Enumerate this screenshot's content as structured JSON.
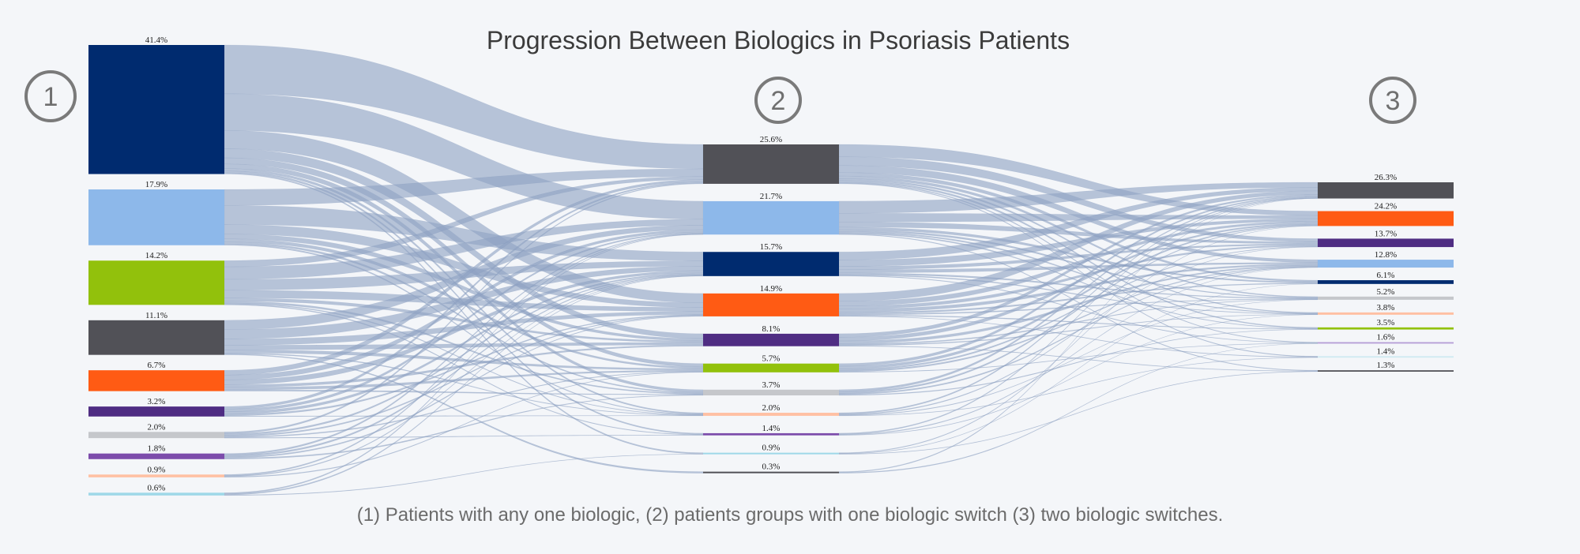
{
  "chart_data": {
    "type": "sankey",
    "title": "Progression Between Biologics in Psoriasis Patients",
    "caption": "(1) Patients with any one biologic, (2) patients groups with one biologic switch (3) two biologic switches.",
    "stage_labels": [
      "1",
      "2",
      "3"
    ],
    "link_color": "#8fa3c4",
    "stages": [
      {
        "nodes": [
          {
            "label": "41.4%",
            "value": 41.4,
            "color": "#002b6f"
          },
          {
            "label": "17.9%",
            "value": 17.9,
            "color": "#8db8ea"
          },
          {
            "label": "14.2%",
            "value": 14.2,
            "color": "#92c10c"
          },
          {
            "label": "11.1%",
            "value": 11.1,
            "color": "#515157"
          },
          {
            "label": "6.7%",
            "value": 6.7,
            "color": "#ff5b14"
          },
          {
            "label": "3.2%",
            "value": 3.2,
            "color": "#4f2d83"
          },
          {
            "label": "2.0%",
            "value": 2.0,
            "color": "#c5c7cb"
          },
          {
            "label": "1.8%",
            "value": 1.8,
            "color": "#7c4cab"
          },
          {
            "label": "0.9%",
            "value": 0.9,
            "color": "#ffc0a3"
          },
          {
            "label": "0.6%",
            "value": 0.6,
            "color": "#9ed8e8"
          }
        ]
      },
      {
        "nodes": [
          {
            "label": "25.6%",
            "value": 25.6,
            "color": "#515157"
          },
          {
            "label": "21.7%",
            "value": 21.7,
            "color": "#8db8ea"
          },
          {
            "label": "15.7%",
            "value": 15.7,
            "color": "#002b6f"
          },
          {
            "label": "14.9%",
            "value": 14.9,
            "color": "#ff5b14"
          },
          {
            "label": "8.1%",
            "value": 8.1,
            "color": "#4f2d83"
          },
          {
            "label": "5.7%",
            "value": 5.7,
            "color": "#92c10c"
          },
          {
            "label": "3.7%",
            "value": 3.7,
            "color": "#c5c7cb"
          },
          {
            "label": "2.0%",
            "value": 2.0,
            "color": "#ffc0a3"
          },
          {
            "label": "1.4%",
            "value": 1.4,
            "color": "#7c4cab"
          },
          {
            "label": "0.9%",
            "value": 0.9,
            "color": "#9ed8e8"
          },
          {
            "label": "0.3%",
            "value": 0.3,
            "color": "#515157"
          }
        ]
      },
      {
        "nodes": [
          {
            "label": "26.3%",
            "value": 26.3,
            "color": "#515157"
          },
          {
            "label": "24.2%",
            "value": 24.2,
            "color": "#ff5b14"
          },
          {
            "label": "13.7%",
            "value": 13.7,
            "color": "#4f2d83"
          },
          {
            "label": "12.8%",
            "value": 12.8,
            "color": "#8db8ea"
          },
          {
            "label": "6.1%",
            "value": 6.1,
            "color": "#002b6f"
          },
          {
            "label": "5.2%",
            "value": 5.2,
            "color": "#c5c7cb"
          },
          {
            "label": "3.8%",
            "value": 3.8,
            "color": "#ffc0a3"
          },
          {
            "label": "3.5%",
            "value": 3.5,
            "color": "#92c10c"
          },
          {
            "label": "1.6%",
            "value": 1.6,
            "color": "#b59cd6"
          },
          {
            "label": "1.4%",
            "value": 1.4,
            "color": "#cfeaf1"
          },
          {
            "label": "1.3%",
            "value": 1.3,
            "color": "#515157"
          }
        ]
      }
    ],
    "links_1_to_2": [
      [
        0,
        0,
        16
      ],
      [
        0,
        1,
        12
      ],
      [
        0,
        3,
        6
      ],
      [
        0,
        4,
        3
      ],
      [
        0,
        5,
        2
      ],
      [
        0,
        6,
        1.5
      ],
      [
        0,
        7,
        0.8
      ],
      [
        0,
        8,
        0.6
      ],
      [
        0,
        9,
        0.4
      ],
      [
        1,
        0,
        5
      ],
      [
        1,
        2,
        6
      ],
      [
        1,
        3,
        3
      ],
      [
        1,
        4,
        1.5
      ],
      [
        1,
        5,
        1
      ],
      [
        1,
        6,
        0.6
      ],
      [
        1,
        7,
        0.4
      ],
      [
        2,
        0,
        2
      ],
      [
        2,
        1,
        4
      ],
      [
        2,
        2,
        3.5
      ],
      [
        2,
        3,
        2.5
      ],
      [
        2,
        4,
        1
      ],
      [
        2,
        6,
        0.6
      ],
      [
        2,
        7,
        0.3
      ],
      [
        2,
        8,
        0.3
      ],
      [
        3,
        1,
        3
      ],
      [
        3,
        2,
        3
      ],
      [
        3,
        3,
        2
      ],
      [
        3,
        4,
        1.5
      ],
      [
        3,
        5,
        1
      ],
      [
        3,
        7,
        0.3
      ],
      [
        3,
        10,
        0.3
      ],
      [
        4,
        0,
        1.5
      ],
      [
        4,
        1,
        1.5
      ],
      [
        4,
        2,
        1.5
      ],
      [
        4,
        4,
        0.8
      ],
      [
        4,
        5,
        0.8
      ],
      [
        4,
        6,
        0.4
      ],
      [
        5,
        0,
        0.8
      ],
      [
        5,
        1,
        0.8
      ],
      [
        5,
        2,
        0.8
      ],
      [
        5,
        3,
        0.5
      ],
      [
        5,
        7,
        0.2
      ],
      [
        6,
        0,
        0.5
      ],
      [
        6,
        2,
        0.5
      ],
      [
        6,
        3,
        0.4
      ],
      [
        6,
        5,
        0.3
      ],
      [
        6,
        8,
        0.2
      ],
      [
        7,
        1,
        0.4
      ],
      [
        7,
        2,
        0.4
      ],
      [
        7,
        3,
        0.3
      ],
      [
        7,
        6,
        0.3
      ],
      [
        8,
        1,
        0.3
      ],
      [
        8,
        2,
        0.2
      ],
      [
        8,
        5,
        0.2
      ],
      [
        9,
        1,
        0.2
      ],
      [
        9,
        2,
        0.2
      ],
      [
        9,
        9,
        0.1
      ]
    ],
    "links_2_to_3": [
      [
        0,
        1,
        7
      ],
      [
        0,
        2,
        5
      ],
      [
        0,
        3,
        4
      ],
      [
        0,
        4,
        2
      ],
      [
        0,
        5,
        1.5
      ],
      [
        0,
        6,
        1
      ],
      [
        0,
        7,
        1
      ],
      [
        0,
        8,
        0.5
      ],
      [
        0,
        9,
        0.4
      ],
      [
        1,
        0,
        7
      ],
      [
        1,
        1,
        5
      ],
      [
        1,
        2,
        3
      ],
      [
        1,
        4,
        1.5
      ],
      [
        1,
        5,
        1
      ],
      [
        1,
        6,
        0.8
      ],
      [
        1,
        7,
        0.6
      ],
      [
        1,
        10,
        0.4
      ],
      [
        2,
        0,
        5
      ],
      [
        2,
        1,
        4
      ],
      [
        2,
        2,
        2
      ],
      [
        2,
        3,
        2
      ],
      [
        2,
        5,
        1
      ],
      [
        2,
        6,
        0.6
      ],
      [
        2,
        8,
        0.4
      ],
      [
        3,
        0,
        5
      ],
      [
        3,
        1,
        3
      ],
      [
        3,
        2,
        2
      ],
      [
        3,
        3,
        2
      ],
      [
        3,
        4,
        1
      ],
      [
        3,
        5,
        0.7
      ],
      [
        3,
        7,
        0.6
      ],
      [
        3,
        9,
        0.3
      ],
      [
        4,
        0,
        2
      ],
      [
        4,
        1,
        2
      ],
      [
        4,
        3,
        1.5
      ],
      [
        4,
        5,
        0.6
      ],
      [
        4,
        6,
        0.5
      ],
      [
        4,
        10,
        0.3
      ],
      [
        5,
        0,
        1.5
      ],
      [
        5,
        1,
        1.5
      ],
      [
        5,
        2,
        0.8
      ],
      [
        5,
        3,
        0.8
      ],
      [
        5,
        8,
        0.3
      ],
      [
        6,
        0,
        1
      ],
      [
        6,
        1,
        0.8
      ],
      [
        6,
        3,
        0.6
      ],
      [
        6,
        7,
        0.4
      ],
      [
        7,
        0,
        0.6
      ],
      [
        7,
        2,
        0.4
      ],
      [
        7,
        5,
        0.3
      ],
      [
        7,
        9,
        0.2
      ],
      [
        8,
        0,
        0.4
      ],
      [
        8,
        3,
        0.3
      ],
      [
        8,
        6,
        0.2
      ],
      [
        9,
        1,
        0.3
      ],
      [
        9,
        4,
        0.2
      ],
      [
        9,
        10,
        0.2
      ],
      [
        10,
        0,
        0.1
      ],
      [
        10,
        8,
        0.1
      ]
    ]
  }
}
